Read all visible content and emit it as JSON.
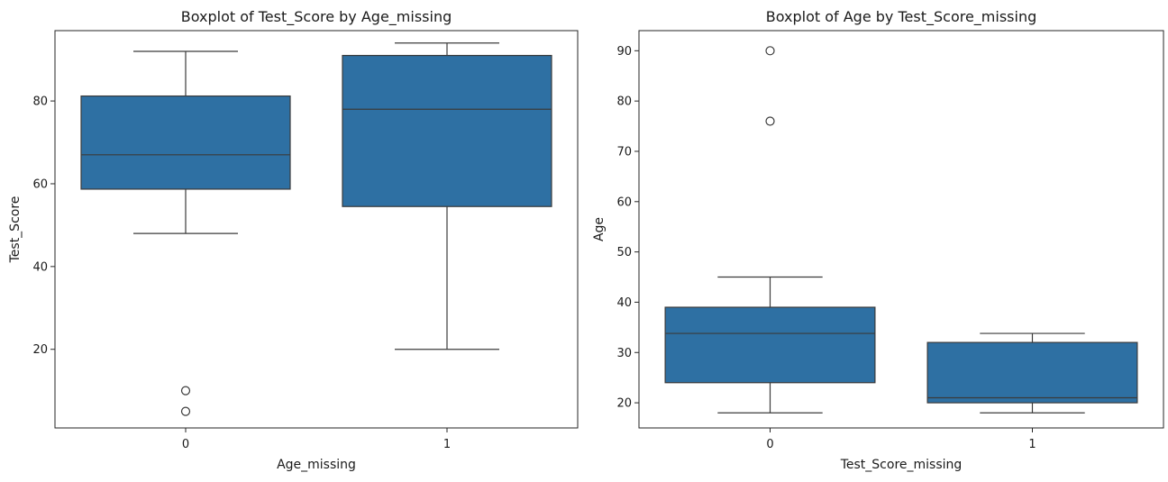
{
  "chart_data": [
    {
      "type": "box",
      "title": "Boxplot of Test_Score by Age_missing",
      "xlabel": "Age_missing",
      "ylabel": "Test_Score",
      "categories": [
        "0",
        "1"
      ],
      "ylim": [
        1,
        97
      ],
      "yticks": [
        20,
        40,
        60,
        80
      ],
      "boxes": [
        {
          "category": "0",
          "whisker_low": 48,
          "q1": 58.7,
          "median": 67,
          "q3": 81.2,
          "whisker_high": 92,
          "outliers": [
            10,
            5
          ]
        },
        {
          "category": "1",
          "whisker_low": 20,
          "q1": 54.5,
          "median": 78,
          "q3": 91,
          "whisker_high": 94,
          "outliers": []
        }
      ],
      "box_color": "#2e70a3",
      "grid": false
    },
    {
      "type": "box",
      "title": "Boxplot of Age by Test_Score_missing",
      "xlabel": "Test_Score_missing",
      "ylabel": "Age",
      "categories": [
        "0",
        "1"
      ],
      "ylim": [
        15,
        94
      ],
      "yticks": [
        20,
        30,
        40,
        50,
        60,
        70,
        80,
        90
      ],
      "boxes": [
        {
          "category": "0",
          "whisker_low": 18,
          "q1": 24,
          "median": 33.8,
          "q3": 39,
          "whisker_high": 45,
          "outliers": [
            90,
            76
          ]
        },
        {
          "category": "1",
          "whisker_low": 18,
          "q1": 20,
          "median": 21,
          "q3": 32,
          "whisker_high": 33.8,
          "outliers": []
        }
      ],
      "box_color": "#2e70a3",
      "grid": false
    }
  ]
}
